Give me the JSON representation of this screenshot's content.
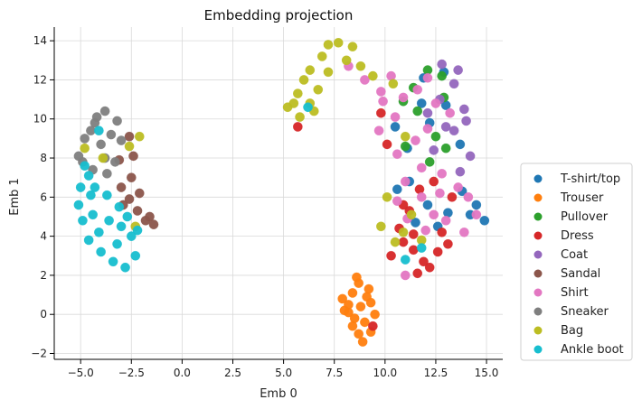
{
  "chart_data": {
    "type": "scatter",
    "title": "Embedding projection",
    "xlabel": "Emb 0",
    "ylabel": "Emb 1",
    "xlim": [
      -6.3,
      15.8
    ],
    "ylim": [
      -2.3,
      14.7
    ],
    "grid": true,
    "legend_position": "right",
    "x_ticks": [
      -5.0,
      -2.5,
      0.0,
      2.5,
      5.0,
      7.5,
      10.0,
      12.5,
      15.0
    ],
    "x_tick_labels": [
      "−5.0",
      "−2.5",
      "0.0",
      "2.5",
      "5.0",
      "7.5",
      "10.0",
      "12.5",
      "15.0"
    ],
    "y_ticks": [
      -2,
      0,
      2,
      4,
      6,
      8,
      10,
      12,
      14
    ],
    "y_tick_labels": [
      "−2",
      "0",
      "2",
      "4",
      "6",
      "8",
      "10",
      "12",
      "14"
    ],
    "series": [
      {
        "name": "T-shirt/top",
        "color": "#1f77b4",
        "points": [
          [
            10.5,
            9.6
          ],
          [
            11.1,
            8.5
          ],
          [
            11.8,
            10.8
          ],
          [
            12.2,
            9.8
          ],
          [
            13.0,
            10.7
          ],
          [
            13.7,
            8.7
          ],
          [
            11.2,
            6.8
          ],
          [
            12.1,
            5.6
          ],
          [
            13.1,
            5.2
          ],
          [
            14.2,
            5.1
          ],
          [
            14.9,
            4.8
          ],
          [
            14.5,
            5.6
          ],
          [
            12.6,
            4.5
          ],
          [
            11.5,
            4.7
          ],
          [
            10.6,
            6.4
          ],
          [
            13.8,
            6.3
          ],
          [
            12.9,
            12.4
          ],
          [
            11.9,
            12.1
          ]
        ]
      },
      {
        "name": "Trouser",
        "color": "#ff7f0e",
        "points": [
          [
            7.9,
            0.8
          ],
          [
            8.2,
            0.1
          ],
          [
            8.4,
            -0.6
          ],
          [
            8.9,
            -1.4
          ],
          [
            9.3,
            -0.9
          ],
          [
            9.5,
            0.0
          ],
          [
            9.1,
            0.9
          ],
          [
            8.7,
            1.6
          ],
          [
            8.4,
            1.1
          ],
          [
            8.8,
            0.4
          ],
          [
            8.5,
            -0.2
          ],
          [
            9.0,
            -0.4
          ],
          [
            8.2,
            0.5
          ],
          [
            9.3,
            0.6
          ],
          [
            8.7,
            -1.0
          ],
          [
            8.0,
            0.2
          ],
          [
            8.6,
            1.9
          ],
          [
            9.2,
            1.3
          ]
        ]
      },
      {
        "name": "Pullover",
        "color": "#2ca02c",
        "points": [
          [
            11.4,
            11.6
          ],
          [
            12.1,
            12.5
          ],
          [
            12.8,
            12.2
          ],
          [
            11.6,
            10.4
          ],
          [
            12.5,
            9.1
          ],
          [
            11.0,
            8.6
          ],
          [
            12.2,
            7.8
          ],
          [
            13.0,
            8.5
          ],
          [
            10.9,
            10.9
          ],
          [
            12.9,
            11.1
          ]
        ]
      },
      {
        "name": "Dress",
        "color": "#d62728",
        "points": [
          [
            10.7,
            4.4
          ],
          [
            10.9,
            3.7
          ],
          [
            11.4,
            3.3
          ],
          [
            11.9,
            2.7
          ],
          [
            12.6,
            3.2
          ],
          [
            13.1,
            3.6
          ],
          [
            11.2,
            5.3
          ],
          [
            11.7,
            6.4
          ],
          [
            12.4,
            6.8
          ],
          [
            13.3,
            6.0
          ],
          [
            10.9,
            5.6
          ],
          [
            11.6,
            2.1
          ],
          [
            12.2,
            2.4
          ],
          [
            10.3,
            3.0
          ],
          [
            9.8,
            10.3
          ],
          [
            10.1,
            8.7
          ],
          [
            12.8,
            4.2
          ],
          [
            11.4,
            4.1
          ],
          [
            9.4,
            -0.6
          ],
          [
            5.7,
            9.6
          ]
        ]
      },
      {
        "name": "Coat",
        "color": "#9467bd",
        "points": [
          [
            12.8,
            12.8
          ],
          [
            13.4,
            11.8
          ],
          [
            13.9,
            10.5
          ],
          [
            13.4,
            9.4
          ],
          [
            14.2,
            8.1
          ],
          [
            13.7,
            7.3
          ],
          [
            12.7,
            11.0
          ],
          [
            12.1,
            10.3
          ],
          [
            13.0,
            9.6
          ],
          [
            13.6,
            12.5
          ],
          [
            14.0,
            9.9
          ],
          [
            12.4,
            8.4
          ]
        ]
      },
      {
        "name": "Sandal",
        "color": "#8c564b",
        "points": [
          [
            -2.6,
            9.1
          ],
          [
            -2.4,
            8.1
          ],
          [
            -2.5,
            7.0
          ],
          [
            -3.0,
            6.5
          ],
          [
            -2.6,
            5.9
          ],
          [
            -2.2,
            5.3
          ],
          [
            -1.8,
            4.8
          ],
          [
            -1.4,
            4.6
          ],
          [
            -3.1,
            7.9
          ],
          [
            -2.1,
            6.2
          ],
          [
            -2.9,
            5.6
          ],
          [
            -1.6,
            5.0
          ]
        ]
      },
      {
        "name": "Shirt",
        "color": "#e377c2",
        "points": [
          [
            8.2,
            12.7
          ],
          [
            9.0,
            12.0
          ],
          [
            9.8,
            11.4
          ],
          [
            10.3,
            12.2
          ],
          [
            10.9,
            11.1
          ],
          [
            11.6,
            11.5
          ],
          [
            12.1,
            12.1
          ],
          [
            12.5,
            10.8
          ],
          [
            13.2,
            10.3
          ],
          [
            12.1,
            9.5
          ],
          [
            11.5,
            8.9
          ],
          [
            10.6,
            8.2
          ],
          [
            9.7,
            9.4
          ],
          [
            10.5,
            10.1
          ],
          [
            11.8,
            7.5
          ],
          [
            12.8,
            7.2
          ],
          [
            13.6,
            6.5
          ],
          [
            14.1,
            6.0
          ],
          [
            14.5,
            5.1
          ],
          [
            13.0,
            4.8
          ],
          [
            12.0,
            4.3
          ],
          [
            11.1,
            4.9
          ],
          [
            10.6,
            5.8
          ],
          [
            11.0,
            6.8
          ],
          [
            11.8,
            6.0
          ],
          [
            12.7,
            6.2
          ],
          [
            13.9,
            4.2
          ],
          [
            12.4,
            5.1
          ],
          [
            11.0,
            2.0
          ],
          [
            9.9,
            10.9
          ]
        ]
      },
      {
        "name": "Sneaker",
        "color": "#7f7f7f",
        "points": [
          [
            -5.1,
            8.1
          ],
          [
            -4.8,
            9.0
          ],
          [
            -4.3,
            9.8
          ],
          [
            -3.8,
            10.4
          ],
          [
            -3.2,
            9.9
          ],
          [
            -3.0,
            8.9
          ],
          [
            -3.3,
            7.8
          ],
          [
            -3.7,
            7.2
          ],
          [
            -4.4,
            7.4
          ],
          [
            -4.9,
            7.8
          ],
          [
            -4.0,
            8.7
          ],
          [
            -3.5,
            9.2
          ],
          [
            -4.5,
            9.4
          ],
          [
            -3.8,
            8.0
          ],
          [
            -4.2,
            10.1
          ]
        ]
      },
      {
        "name": "Bag",
        "color": "#bcbd22",
        "points": [
          [
            5.2,
            10.6
          ],
          [
            5.7,
            11.3
          ],
          [
            6.0,
            12.0
          ],
          [
            6.3,
            12.5
          ],
          [
            6.9,
            13.2
          ],
          [
            7.2,
            13.8
          ],
          [
            7.7,
            13.9
          ],
          [
            8.4,
            13.7
          ],
          [
            8.1,
            13.0
          ],
          [
            6.7,
            11.5
          ],
          [
            5.8,
            10.1
          ],
          [
            6.5,
            10.4
          ],
          [
            9.4,
            12.2
          ],
          [
            10.4,
            11.8
          ],
          [
            10.9,
            4.2
          ],
          [
            10.5,
            3.7
          ],
          [
            11.3,
            5.1
          ],
          [
            -4.8,
            8.5
          ],
          [
            -3.9,
            8.0
          ],
          [
            -2.1,
            9.1
          ],
          [
            -2.6,
            8.6
          ],
          [
            -2.3,
            4.5
          ],
          [
            11.8,
            3.8
          ],
          [
            11.0,
            9.1
          ],
          [
            5.5,
            10.8
          ],
          [
            6.3,
            10.8
          ],
          [
            7.2,
            12.4
          ],
          [
            8.8,
            12.7
          ],
          [
            10.1,
            6.0
          ],
          [
            9.8,
            4.5
          ]
        ]
      },
      {
        "name": "Ankle boot",
        "color": "#17becf",
        "points": [
          [
            -5.0,
            6.5
          ],
          [
            -5.1,
            5.6
          ],
          [
            -4.9,
            4.8
          ],
          [
            -4.6,
            3.8
          ],
          [
            -4.0,
            3.2
          ],
          [
            -3.4,
            2.7
          ],
          [
            -2.8,
            2.4
          ],
          [
            -2.3,
            3.0
          ],
          [
            -2.5,
            4.0
          ],
          [
            -3.0,
            4.5
          ],
          [
            -3.1,
            5.5
          ],
          [
            -3.7,
            6.1
          ],
          [
            -4.3,
            6.5
          ],
          [
            -4.4,
            5.1
          ],
          [
            -3.6,
            4.8
          ],
          [
            -4.1,
            4.2
          ],
          [
            -3.2,
            3.6
          ],
          [
            -2.7,
            5.0
          ],
          [
            -2.2,
            4.3
          ],
          [
            -4.8,
            7.6
          ],
          [
            -4.6,
            7.1
          ],
          [
            -4.1,
            9.4
          ],
          [
            -4.5,
            6.1
          ],
          [
            6.2,
            10.6
          ],
          [
            11.8,
            3.4
          ],
          [
            11.0,
            2.8
          ]
        ]
      }
    ]
  }
}
